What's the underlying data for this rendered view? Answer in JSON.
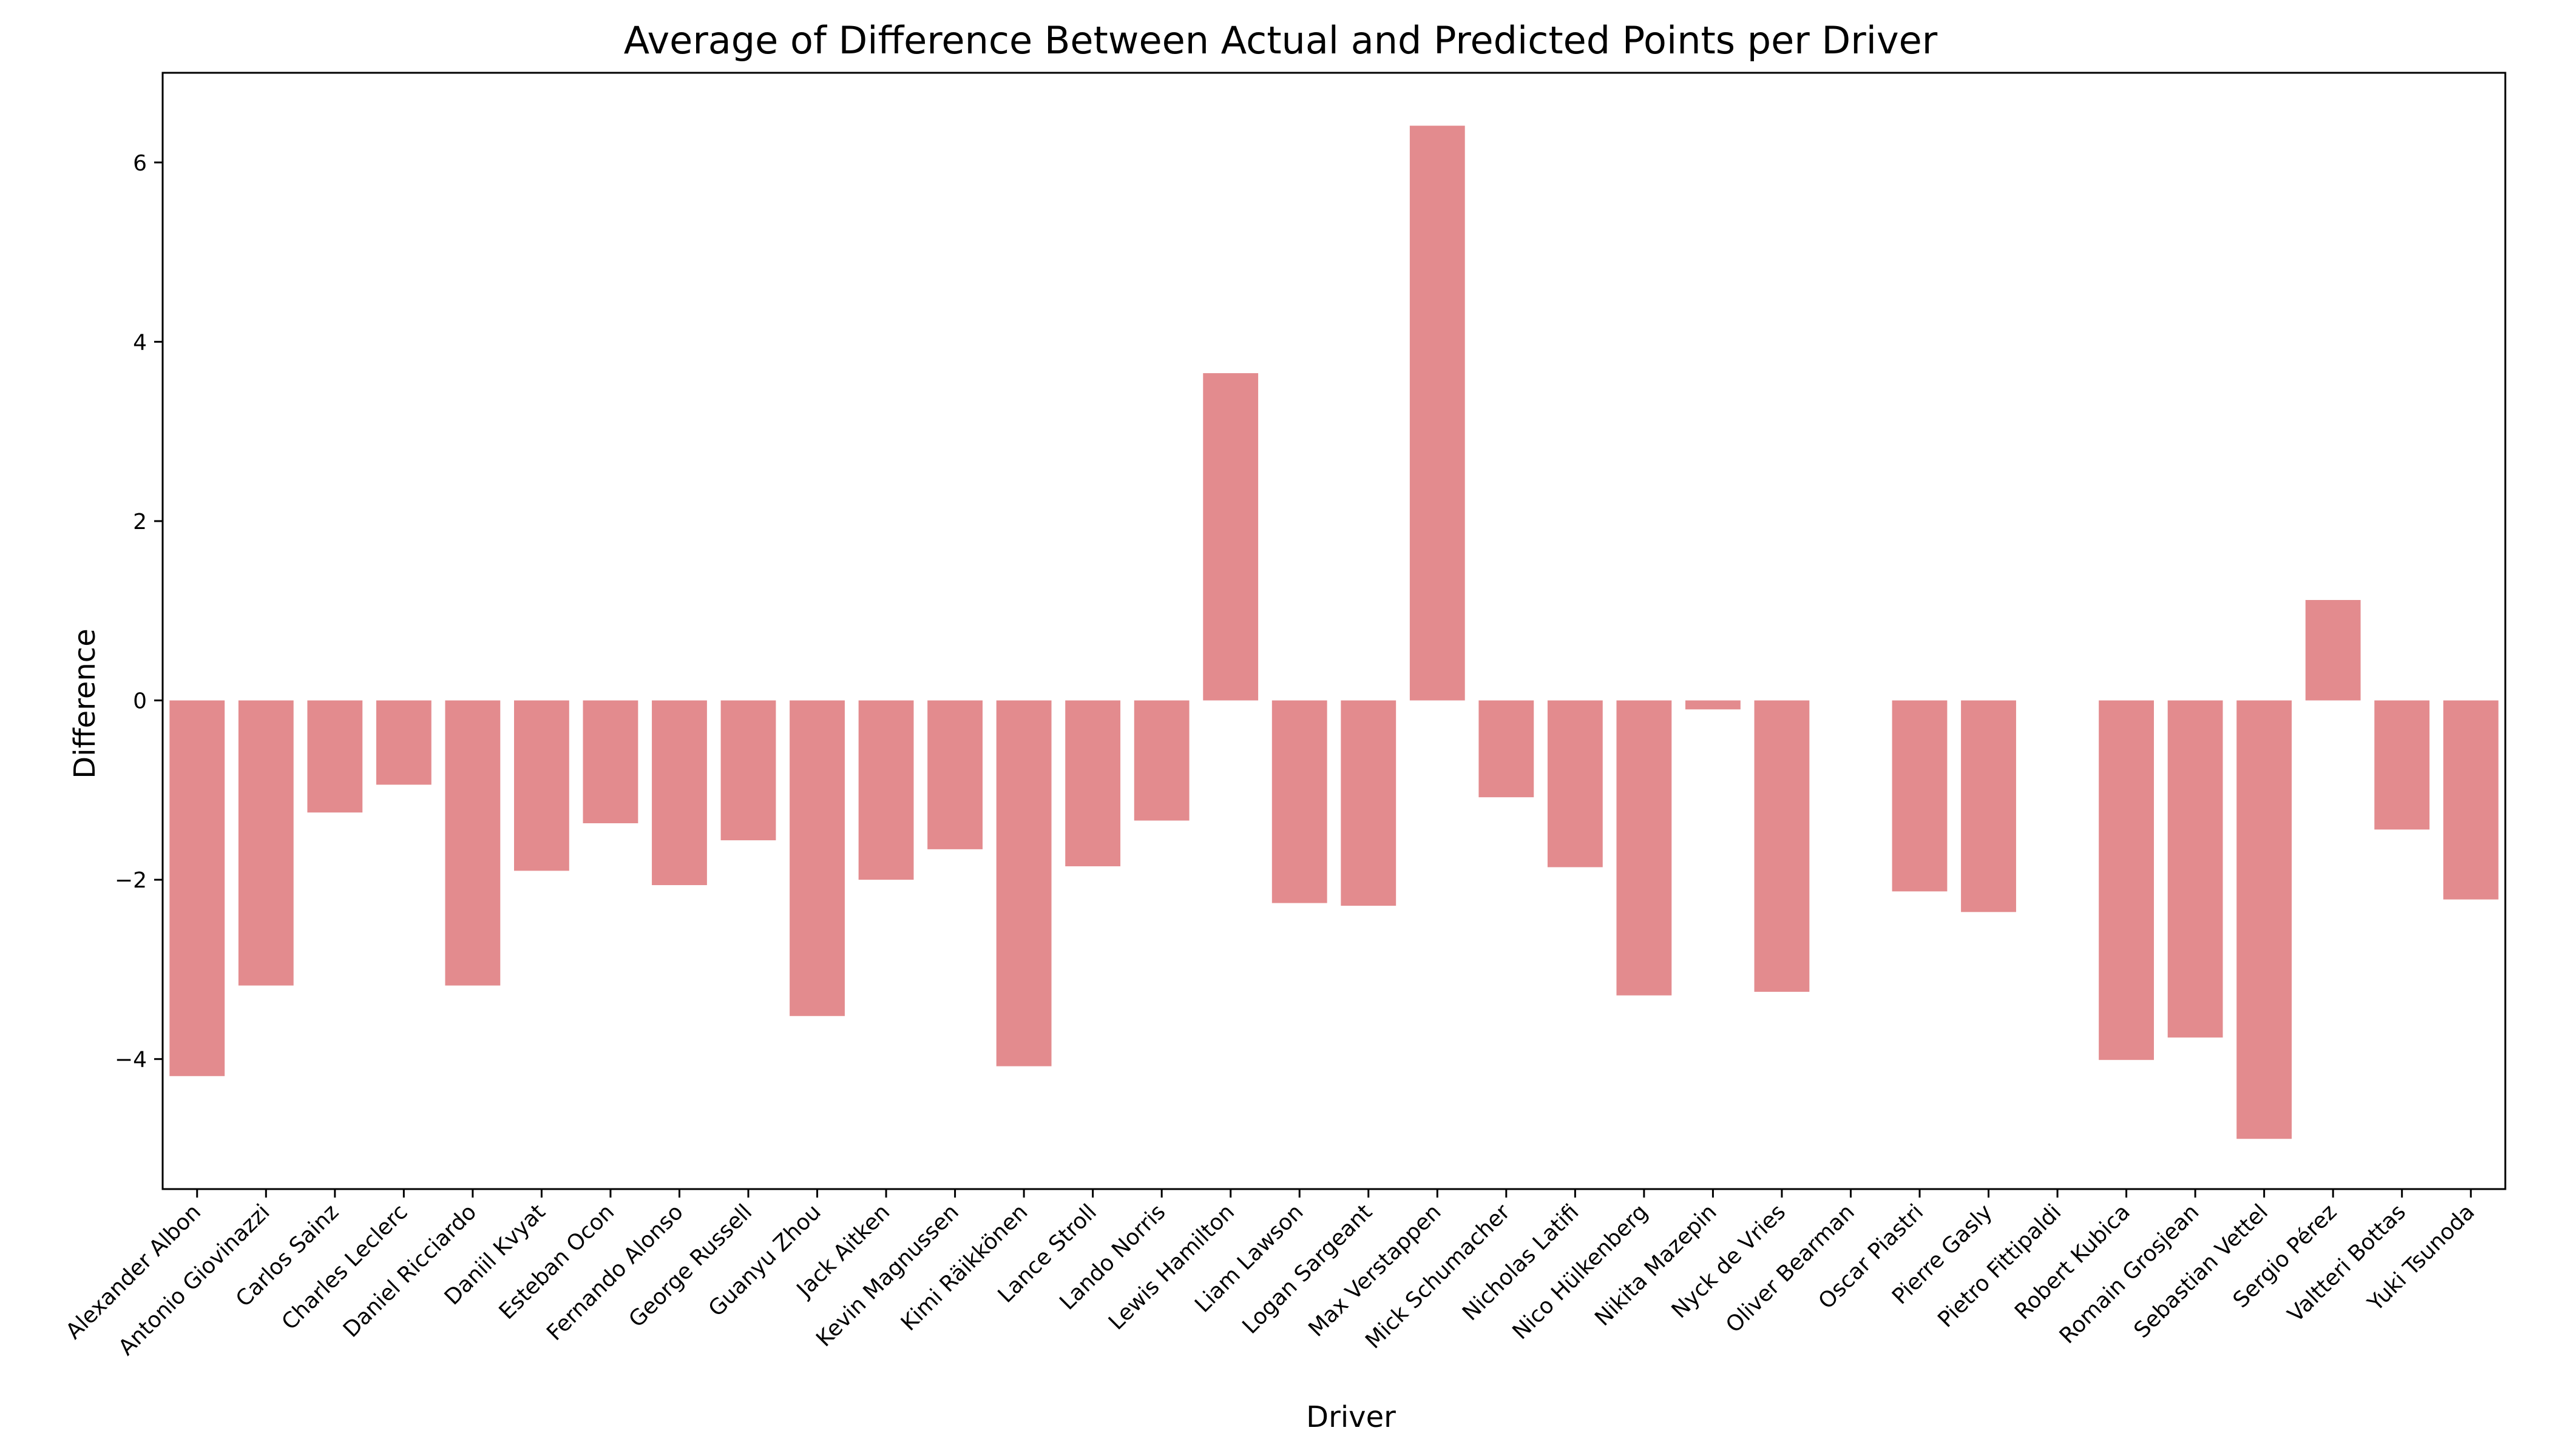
{
  "chart_data": {
    "type": "bar",
    "title": "Average of Difference Between Actual and Predicted Points per Driver",
    "xlabel": "Driver",
    "ylabel": "Difference",
    "ylim": [
      -5.45,
      7.0
    ],
    "yticks": [
      {
        "value": -4,
        "label": "−4"
      },
      {
        "value": -2,
        "label": "−2"
      },
      {
        "value": 0,
        "label": "0"
      },
      {
        "value": 2,
        "label": "2"
      },
      {
        "value": 4,
        "label": "4"
      },
      {
        "value": 6,
        "label": "6"
      }
    ],
    "grid": false,
    "bar_color": "#e38b8e",
    "categories": [
      "Alexander Albon",
      "Antonio Giovinazzi",
      "Carlos Sainz",
      "Charles Leclerc",
      "Daniel Ricciardo",
      "Daniil Kvyat",
      "Esteban Ocon",
      "Fernando Alonso",
      "George Russell",
      "Guanyu Zhou",
      "Jack Aitken",
      "Kevin Magnussen",
      "Kimi Räikkönen",
      "Lance Stroll",
      "Lando Norris",
      "Lewis Hamilton",
      "Liam Lawson",
      "Logan Sargeant",
      "Max Verstappen",
      "Mick Schumacher",
      "Nicholas Latifi",
      "Nico Hülkenberg",
      "Nikita Mazepin",
      "Nyck de Vries",
      "Oliver Bearman",
      "Oscar Piastri",
      "Pierre Gasly",
      "Pietro Fittipaldi",
      "Robert Kubica",
      "Romain Grosjean",
      "Sebastian Vettel",
      "Sergio Pérez",
      "Valtteri Bottas",
      "Yuki Tsunoda"
    ],
    "values": [
      -4.19,
      -3.18,
      -1.25,
      -0.94,
      -3.18,
      -1.9,
      -1.37,
      -2.06,
      -1.56,
      -3.52,
      -2.0,
      -1.66,
      -4.08,
      -1.85,
      -1.34,
      3.65,
      -2.26,
      -2.29,
      6.41,
      -1.08,
      -1.86,
      -3.29,
      -0.1,
      -3.25,
      0.0,
      -2.13,
      -2.36,
      0.0,
      -4.01,
      -3.76,
      -4.89,
      1.12,
      -1.44,
      -2.22
    ]
  }
}
